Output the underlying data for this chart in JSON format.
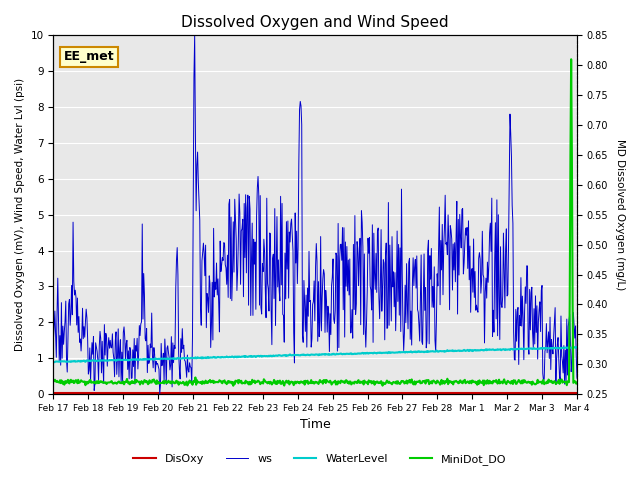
{
  "title": "Dissolved Oxygen and Wind Speed",
  "ylabel_left": "Dissolved Oxygen (mV), Wind Speed, Water Lvl (psi)",
  "ylabel_right": "MD Dissolved Oxygen (mg/L)",
  "xlabel": "Time",
  "annotation": "EE_met",
  "ylim_left": [
    0.0,
    10.0
  ],
  "ylim_right": [
    0.25,
    0.85
  ],
  "yticks_left": [
    0.0,
    1.0,
    2.0,
    3.0,
    4.0,
    5.0,
    6.0,
    7.0,
    8.0,
    9.0,
    10.0
  ],
  "yticks_right": [
    0.25,
    0.3,
    0.35,
    0.4,
    0.45,
    0.5,
    0.55,
    0.6,
    0.65,
    0.7,
    0.75,
    0.8,
    0.85
  ],
  "xtick_positions": [
    0,
    1,
    2,
    3,
    4,
    5,
    6,
    7,
    8,
    9,
    10,
    11,
    12,
    13,
    14,
    15
  ],
  "xtick_labels": [
    "Feb 17",
    "Feb 18",
    "Feb 19",
    "Feb 20",
    "Feb 21",
    "Feb 22",
    "Feb 23",
    "Feb 24",
    "Feb 25",
    "Feb 26",
    "Feb 27",
    "Feb 28",
    "Mar 1",
    "Mar 2",
    "Mar 3",
    "Mar 4"
  ],
  "xlim": [
    0,
    15
  ],
  "colors": {
    "DisOxy": "#cc0000",
    "ws": "#0000cc",
    "WaterLevel": "#00cccc",
    "MiniDot_DO": "#00cc00",
    "background": "#e8e8e8",
    "annotation_bg": "#ffffcc",
    "annotation_border": "#cc8800"
  },
  "legend_labels": [
    "DisOxy",
    "ws",
    "WaterLevel",
    "MiniDot_DO"
  ]
}
